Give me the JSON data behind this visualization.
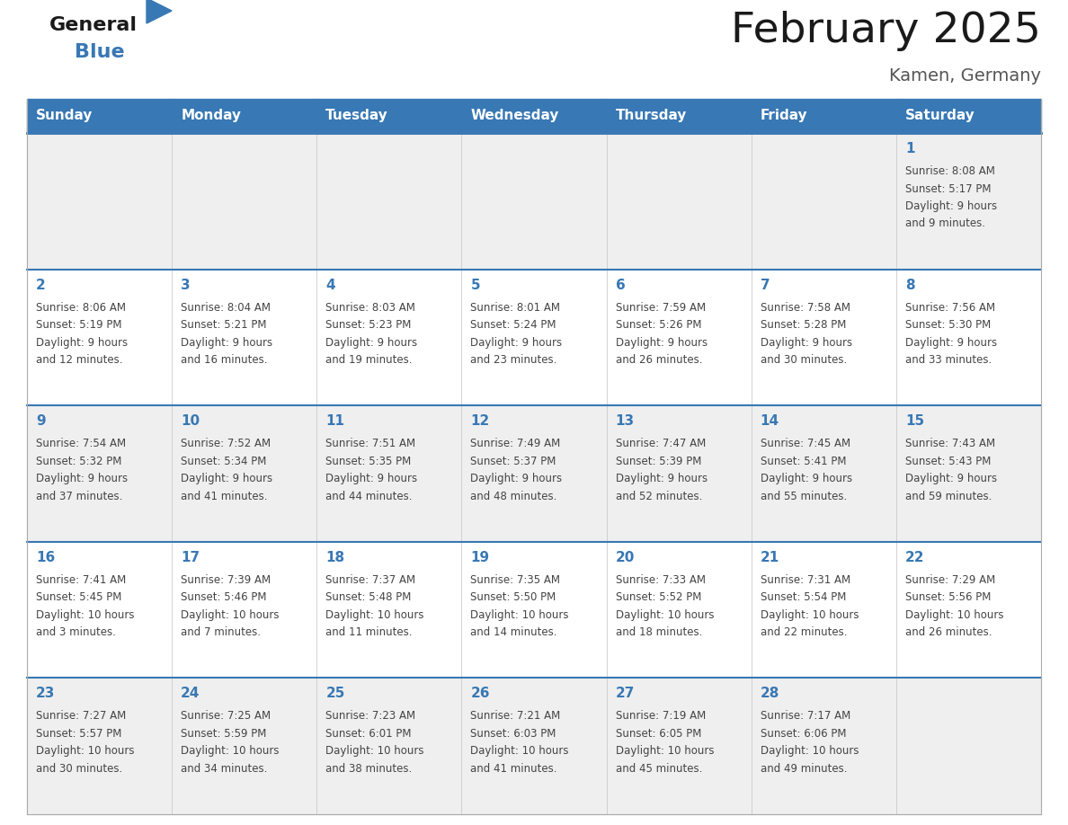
{
  "title": "February 2025",
  "subtitle": "Kamen, Germany",
  "header_color": "#3878B4",
  "header_text_color": "#FFFFFF",
  "days_of_week": [
    "Sunday",
    "Monday",
    "Tuesday",
    "Wednesday",
    "Thursday",
    "Friday",
    "Saturday"
  ],
  "background_color": "#FFFFFF",
  "cell_bg_light": "#EFEFEF",
  "cell_bg_white": "#FFFFFF",
  "day_number_color": "#3878B4",
  "info_text_color": "#444444",
  "line_color": "#3878B4",
  "calendar": [
    [
      {
        "day": 0,
        "info": ""
      },
      {
        "day": 0,
        "info": ""
      },
      {
        "day": 0,
        "info": ""
      },
      {
        "day": 0,
        "info": ""
      },
      {
        "day": 0,
        "info": ""
      },
      {
        "day": 0,
        "info": ""
      },
      {
        "day": 1,
        "info": "Sunrise: 8:08 AM\nSunset: 5:17 PM\nDaylight: 9 hours\nand 9 minutes."
      }
    ],
    [
      {
        "day": 2,
        "info": "Sunrise: 8:06 AM\nSunset: 5:19 PM\nDaylight: 9 hours\nand 12 minutes."
      },
      {
        "day": 3,
        "info": "Sunrise: 8:04 AM\nSunset: 5:21 PM\nDaylight: 9 hours\nand 16 minutes."
      },
      {
        "day": 4,
        "info": "Sunrise: 8:03 AM\nSunset: 5:23 PM\nDaylight: 9 hours\nand 19 minutes."
      },
      {
        "day": 5,
        "info": "Sunrise: 8:01 AM\nSunset: 5:24 PM\nDaylight: 9 hours\nand 23 minutes."
      },
      {
        "day": 6,
        "info": "Sunrise: 7:59 AM\nSunset: 5:26 PM\nDaylight: 9 hours\nand 26 minutes."
      },
      {
        "day": 7,
        "info": "Sunrise: 7:58 AM\nSunset: 5:28 PM\nDaylight: 9 hours\nand 30 minutes."
      },
      {
        "day": 8,
        "info": "Sunrise: 7:56 AM\nSunset: 5:30 PM\nDaylight: 9 hours\nand 33 minutes."
      }
    ],
    [
      {
        "day": 9,
        "info": "Sunrise: 7:54 AM\nSunset: 5:32 PM\nDaylight: 9 hours\nand 37 minutes."
      },
      {
        "day": 10,
        "info": "Sunrise: 7:52 AM\nSunset: 5:34 PM\nDaylight: 9 hours\nand 41 minutes."
      },
      {
        "day": 11,
        "info": "Sunrise: 7:51 AM\nSunset: 5:35 PM\nDaylight: 9 hours\nand 44 minutes."
      },
      {
        "day": 12,
        "info": "Sunrise: 7:49 AM\nSunset: 5:37 PM\nDaylight: 9 hours\nand 48 minutes."
      },
      {
        "day": 13,
        "info": "Sunrise: 7:47 AM\nSunset: 5:39 PM\nDaylight: 9 hours\nand 52 minutes."
      },
      {
        "day": 14,
        "info": "Sunrise: 7:45 AM\nSunset: 5:41 PM\nDaylight: 9 hours\nand 55 minutes."
      },
      {
        "day": 15,
        "info": "Sunrise: 7:43 AM\nSunset: 5:43 PM\nDaylight: 9 hours\nand 59 minutes."
      }
    ],
    [
      {
        "day": 16,
        "info": "Sunrise: 7:41 AM\nSunset: 5:45 PM\nDaylight: 10 hours\nand 3 minutes."
      },
      {
        "day": 17,
        "info": "Sunrise: 7:39 AM\nSunset: 5:46 PM\nDaylight: 10 hours\nand 7 minutes."
      },
      {
        "day": 18,
        "info": "Sunrise: 7:37 AM\nSunset: 5:48 PM\nDaylight: 10 hours\nand 11 minutes."
      },
      {
        "day": 19,
        "info": "Sunrise: 7:35 AM\nSunset: 5:50 PM\nDaylight: 10 hours\nand 14 minutes."
      },
      {
        "day": 20,
        "info": "Sunrise: 7:33 AM\nSunset: 5:52 PM\nDaylight: 10 hours\nand 18 minutes."
      },
      {
        "day": 21,
        "info": "Sunrise: 7:31 AM\nSunset: 5:54 PM\nDaylight: 10 hours\nand 22 minutes."
      },
      {
        "day": 22,
        "info": "Sunrise: 7:29 AM\nSunset: 5:56 PM\nDaylight: 10 hours\nand 26 minutes."
      }
    ],
    [
      {
        "day": 23,
        "info": "Sunrise: 7:27 AM\nSunset: 5:57 PM\nDaylight: 10 hours\nand 30 minutes."
      },
      {
        "day": 24,
        "info": "Sunrise: 7:25 AM\nSunset: 5:59 PM\nDaylight: 10 hours\nand 34 minutes."
      },
      {
        "day": 25,
        "info": "Sunrise: 7:23 AM\nSunset: 6:01 PM\nDaylight: 10 hours\nand 38 minutes."
      },
      {
        "day": 26,
        "info": "Sunrise: 7:21 AM\nSunset: 6:03 PM\nDaylight: 10 hours\nand 41 minutes."
      },
      {
        "day": 27,
        "info": "Sunrise: 7:19 AM\nSunset: 6:05 PM\nDaylight: 10 hours\nand 45 minutes."
      },
      {
        "day": 28,
        "info": "Sunrise: 7:17 AM\nSunset: 6:06 PM\nDaylight: 10 hours\nand 49 minutes."
      },
      {
        "day": 0,
        "info": ""
      }
    ]
  ]
}
